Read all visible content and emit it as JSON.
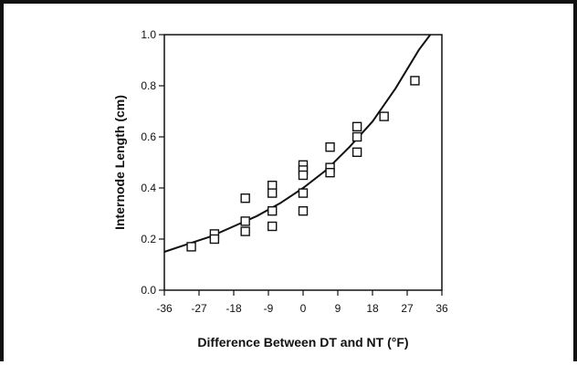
{
  "chart_data": {
    "type": "scatter",
    "xlabel": "Difference Between DT and NT (°F)",
    "ylabel": "Internode Length (cm)",
    "xlim": [
      -36,
      36
    ],
    "ylim": [
      0.0,
      1.0
    ],
    "x_ticks": [
      "-36",
      "-27",
      "-18",
      "-9",
      "0",
      "9",
      "18",
      "27",
      "36"
    ],
    "y_ticks": [
      "0.0",
      "0.2",
      "0.4",
      "0.6",
      "0.8",
      "1.0"
    ],
    "grid": false,
    "series": [
      {
        "marker": "open-square",
        "points": [
          [
            -29,
            0.17
          ],
          [
            -23,
            0.22
          ],
          [
            -23,
            0.2
          ],
          [
            -15,
            0.36
          ],
          [
            -15,
            0.27
          ],
          [
            -15,
            0.23
          ],
          [
            -8,
            0.41
          ],
          [
            -8,
            0.38
          ],
          [
            -8,
            0.31
          ],
          [
            -8,
            0.25
          ],
          [
            0,
            0.49
          ],
          [
            0,
            0.47
          ],
          [
            0,
            0.45
          ],
          [
            0,
            0.38
          ],
          [
            0,
            0.31
          ],
          [
            7,
            0.56
          ],
          [
            7,
            0.48
          ],
          [
            7,
            0.46
          ],
          [
            14,
            0.64
          ],
          [
            14,
            0.6
          ],
          [
            14,
            0.54
          ],
          [
            21,
            0.68
          ],
          [
            29,
            0.82
          ]
        ]
      },
      {
        "type": "line",
        "style": "fitted-curve",
        "points": [
          [
            -36,
            0.15
          ],
          [
            -30,
            0.18
          ],
          [
            -24,
            0.21
          ],
          [
            -18,
            0.25
          ],
          [
            -12,
            0.29
          ],
          [
            -6,
            0.34
          ],
          [
            0,
            0.4
          ],
          [
            6,
            0.47
          ],
          [
            12,
            0.56
          ],
          [
            18,
            0.66
          ],
          [
            24,
            0.79
          ],
          [
            30,
            0.94
          ],
          [
            33,
            1.0
          ]
        ]
      }
    ]
  }
}
